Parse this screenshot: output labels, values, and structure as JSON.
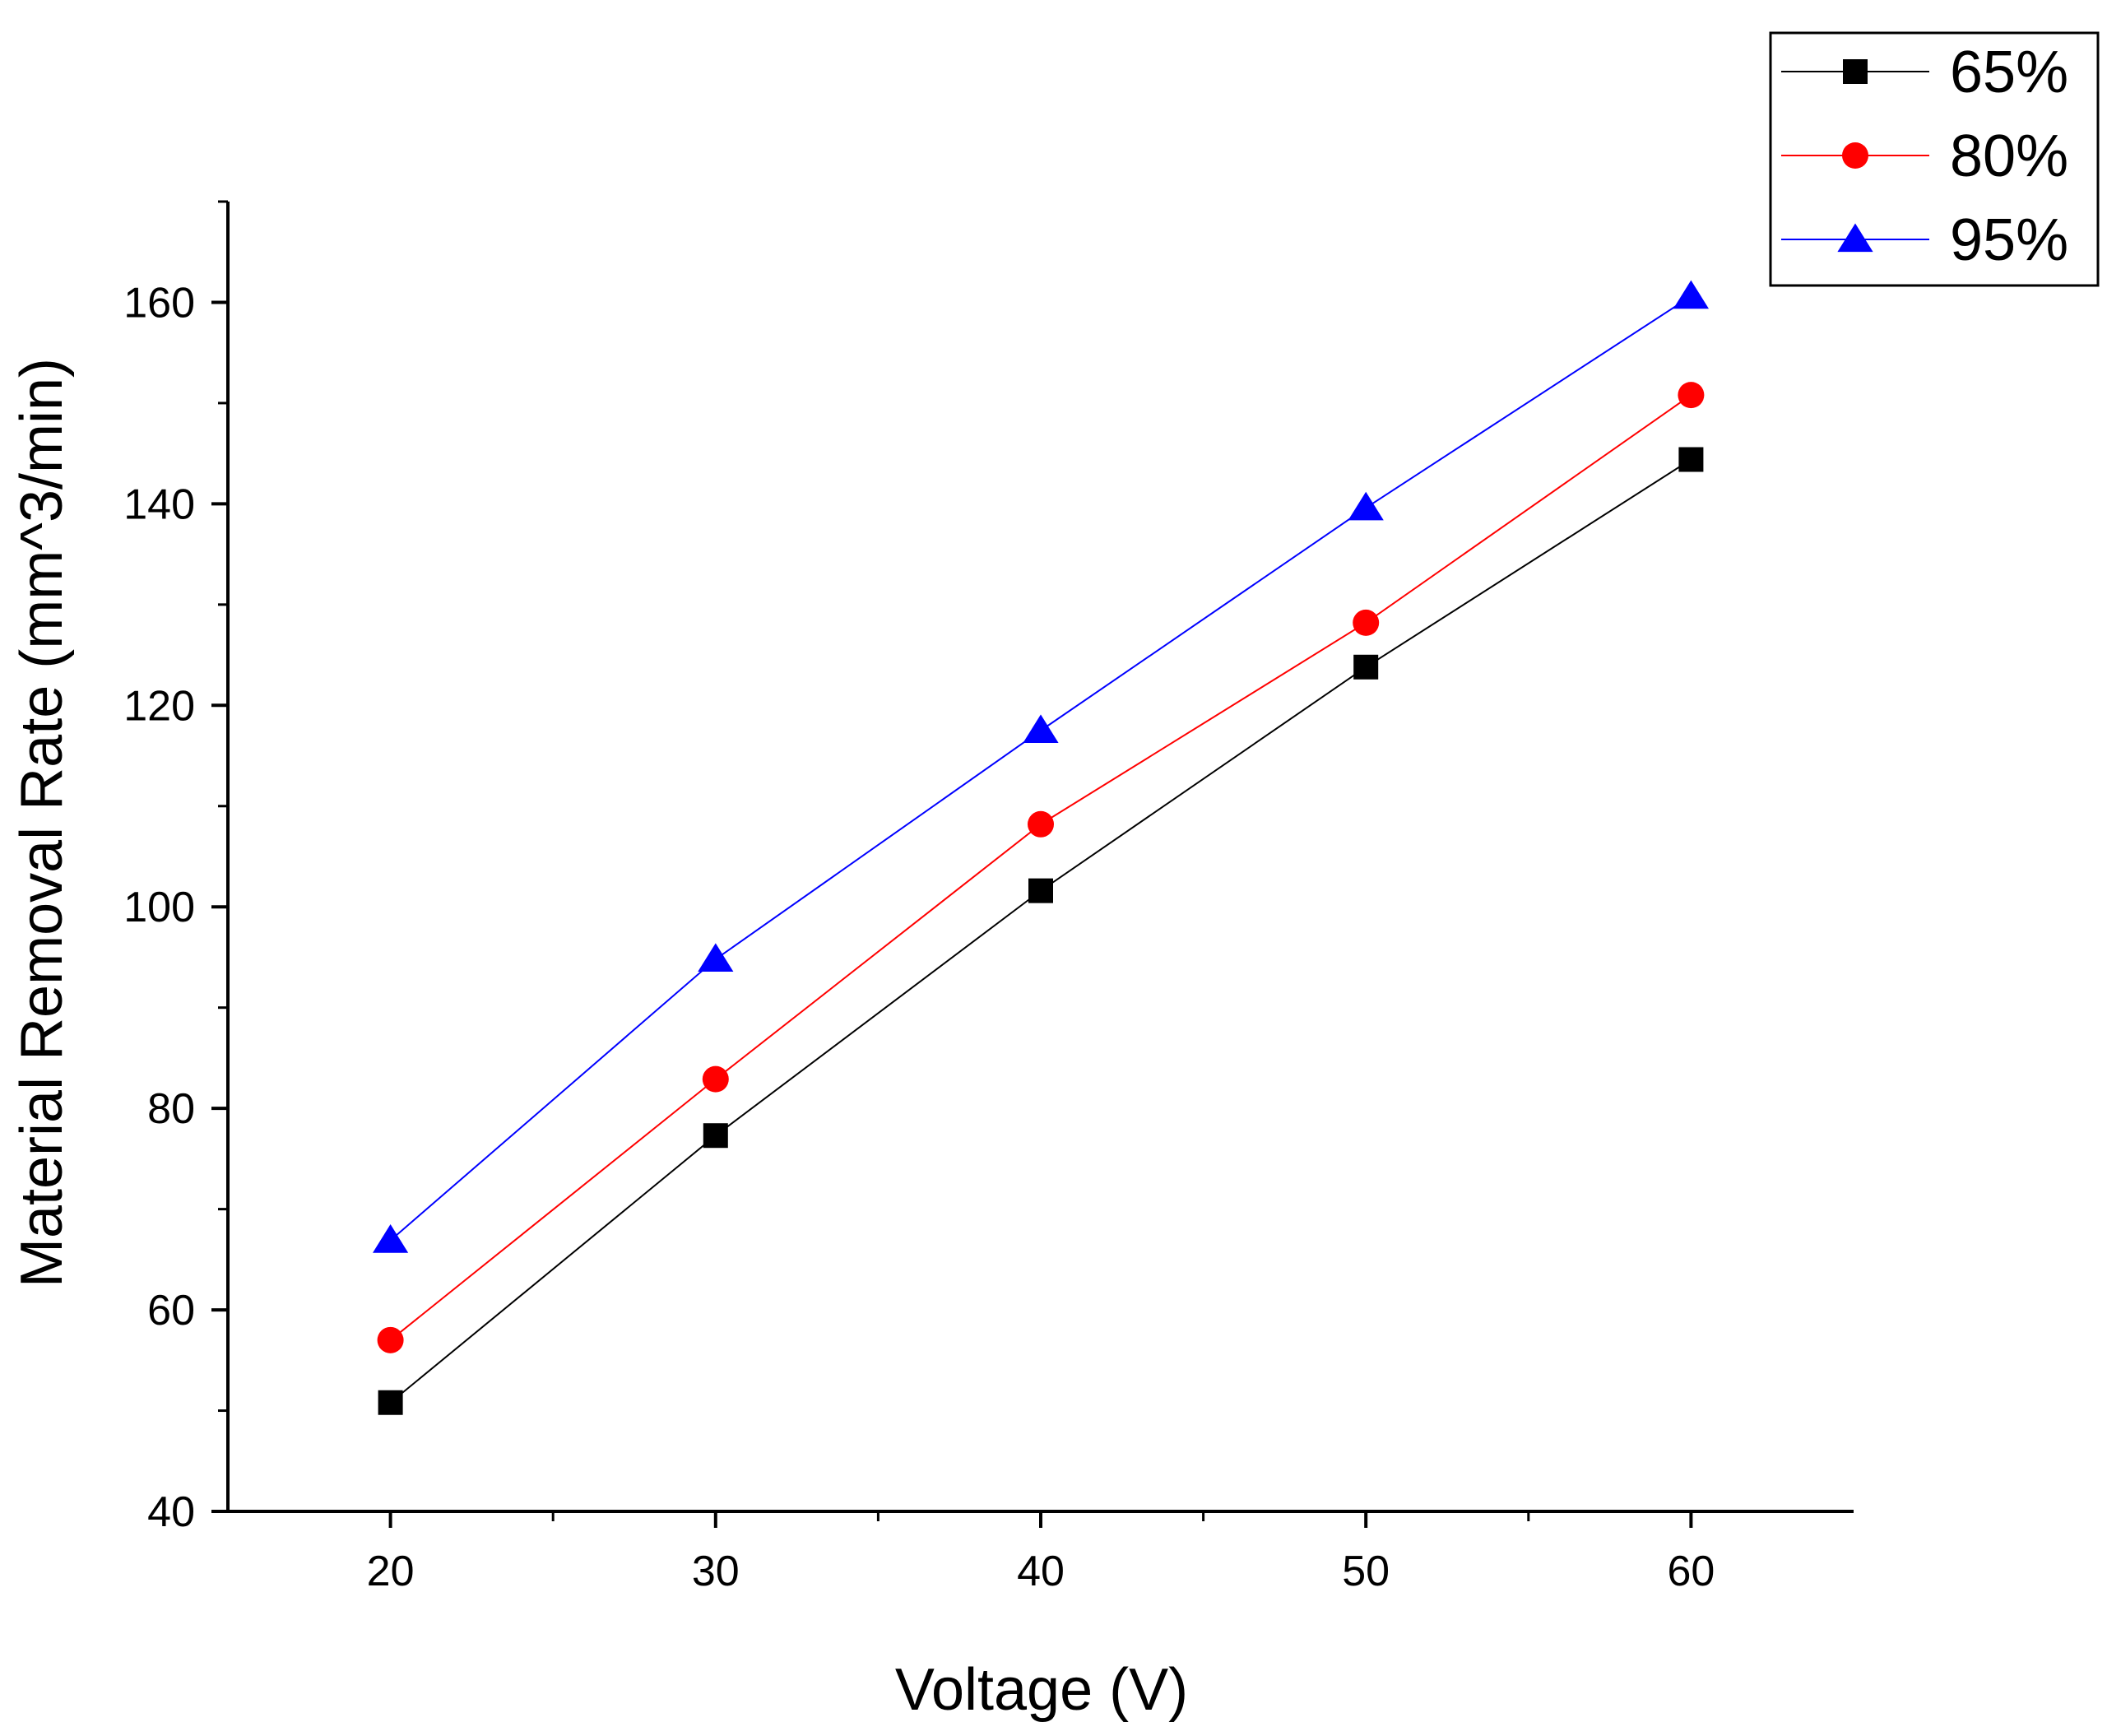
{
  "chart_data": {
    "type": "line",
    "title": "",
    "xlabel": "Voltage (V)",
    "ylabel": "Material Removal Rate (mm^3/min)",
    "x": [
      20,
      30,
      40,
      50,
      60
    ],
    "xlim": [
      15,
      65
    ],
    "ylim": [
      40,
      170
    ],
    "xticks": [
      20,
      30,
      40,
      50,
      60
    ],
    "xticks_minor": [
      25,
      35,
      45,
      55
    ],
    "yticks": [
      40,
      60,
      80,
      100,
      120,
      140,
      160
    ],
    "yticks_minor": [
      50,
      70,
      90,
      110,
      130,
      150,
      170
    ],
    "grid": false,
    "legend_position": "top-right (outside plot)",
    "series": [
      {
        "name": "65%",
        "marker": "square",
        "color": "#000000",
        "values": [
          50.8,
          77.3,
          101.6,
          123.8,
          144.4
        ]
      },
      {
        "name": "80%",
        "marker": "circle",
        "color": "#ff0000",
        "values": [
          57.0,
          82.9,
          108.2,
          128.2,
          150.8
        ]
      },
      {
        "name": "95%",
        "marker": "triangle",
        "color": "#0000ff",
        "values": [
          66.9,
          94.8,
          117.5,
          139.6,
          160.6
        ]
      }
    ]
  }
}
